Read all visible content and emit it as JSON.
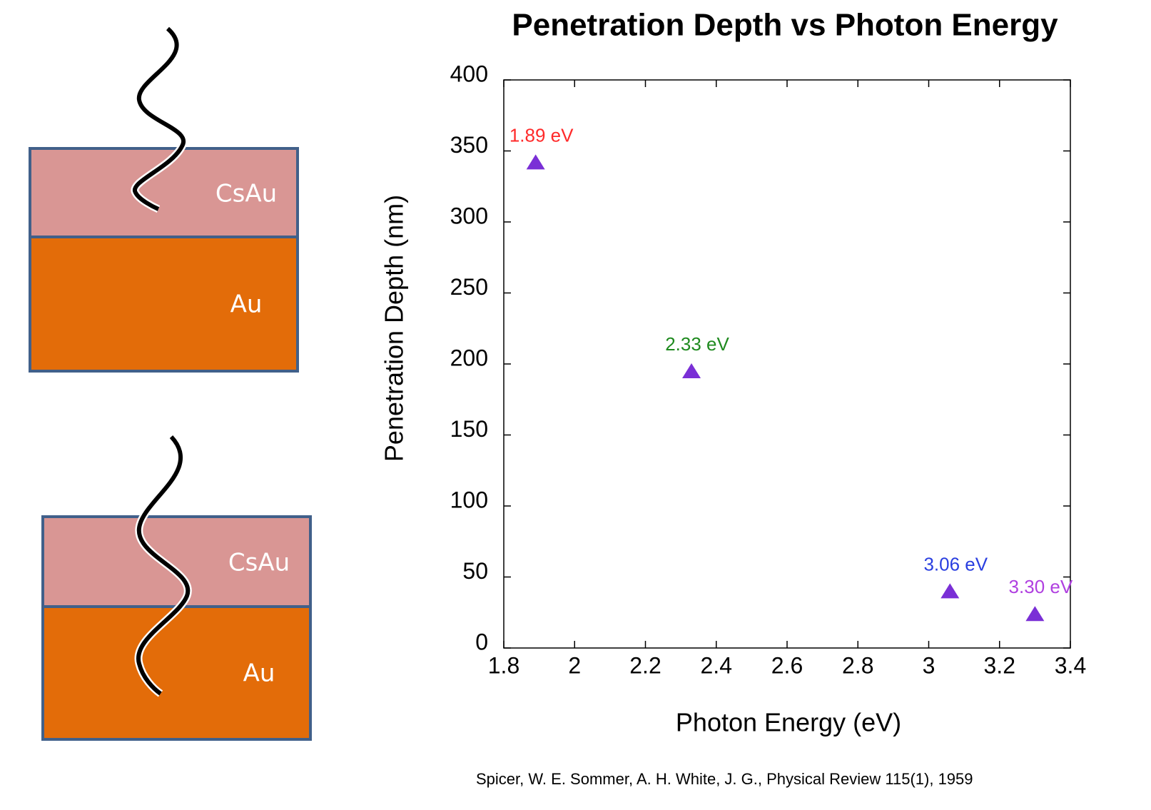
{
  "chart_data": {
    "type": "scatter",
    "title": "Penetration Depth vs Photon Energy",
    "x_label": "Photon Energy (eV)",
    "y_label": "Penetration Depth (nm)",
    "x": [
      1.89,
      2.33,
      3.06,
      3.3
    ],
    "values": [
      342,
      195,
      40,
      24
    ],
    "point_labels": [
      "1.89 eV",
      "2.33 eV",
      "3.06 eV",
      "3.30 eV"
    ],
    "point_label_colors": [
      "#ff2a2a",
      "#1f8a1f",
      "#2a3fe0",
      "#b040e0"
    ],
    "color": "#7a2fd6",
    "marker": "triangle",
    "xlim": [
      1.8,
      3.4
    ],
    "xticks": [
      1.8,
      2,
      2.2,
      2.4,
      2.6,
      2.8,
      3,
      3.2,
      3.4
    ],
    "ylim": [
      0,
      400
    ],
    "yticks": [
      0,
      50,
      100,
      150,
      200,
      250,
      300,
      350,
      400
    ],
    "grid": false
  },
  "diagram": {
    "panels": [
      {
        "layers": [
          "CsAu",
          "Au"
        ]
      },
      {
        "layers": [
          "CsAu",
          "Au"
        ]
      }
    ]
  },
  "citation": "Spicer, W. E. Sommer, A. H. White, J. G.,  Physical Review 115(1),  1959"
}
